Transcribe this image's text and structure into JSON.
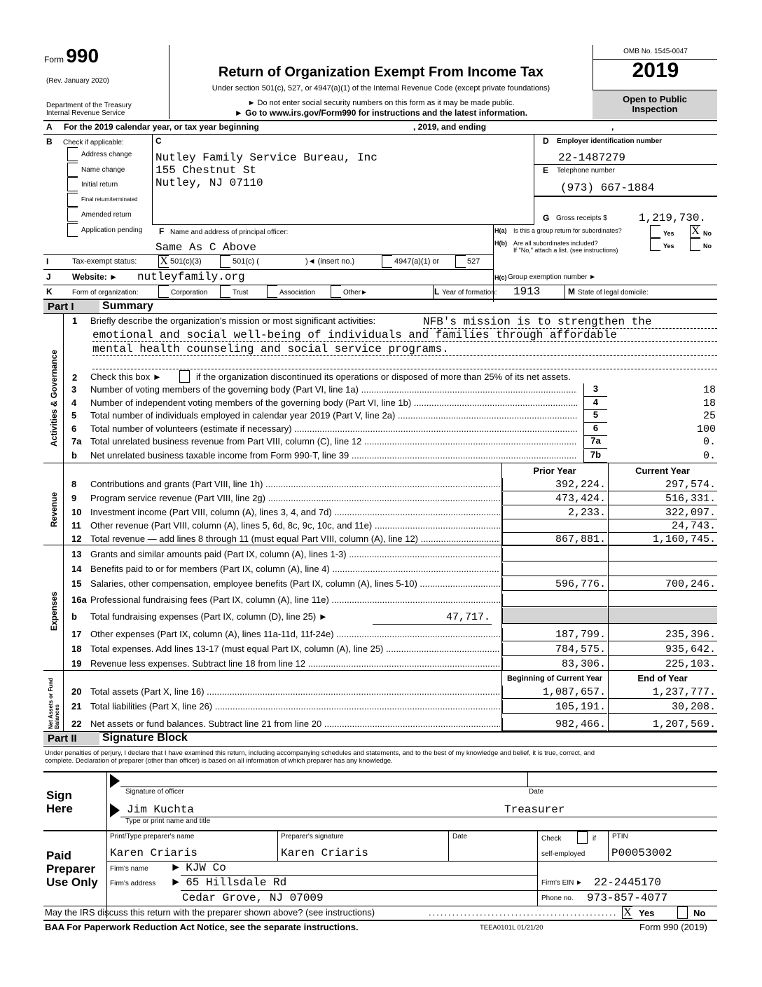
{
  "header": {
    "form_word": "Form",
    "form_number": "990",
    "rev": "(Rev. January 2020)",
    "dept1": "Department of the Treasury",
    "dept2": "Internal Revenue Service",
    "title": "Return of Organization Exempt From Income Tax",
    "subtitle": "Under section 501(c), 527, or 4947(a)(1) of the Internal Revenue Code (except private foundations)",
    "note1": "► Do not enter social security numbers on this form as it may be made public.",
    "note2": "► Go to www.irs.gov/Form990 for instructions and the latest information.",
    "omb": "OMB No. 1545-0047",
    "year": "2019",
    "open": "Open to Public",
    "inspection": "Inspection"
  },
  "lineA": {
    "letter": "A",
    "text": "For the 2019 calendar year, or tax year beginning",
    "mid": ", 2019, and ending",
    "end": ","
  },
  "B": {
    "letter": "B",
    "label": "Check if applicable:",
    "items": [
      "Address change",
      "Name change",
      "Initial return",
      "Final return/terminated",
      "Amended return",
      "Application pending"
    ]
  },
  "C": {
    "letter": "C",
    "name": "Nutley Family Service Bureau, Inc",
    "street": "155 Chestnut St",
    "city": "Nutley, NJ 07110"
  },
  "D": {
    "letter": "D",
    "label": "Employer identification number",
    "value": "22-1487279"
  },
  "E": {
    "letter": "E",
    "label": "Telephone number",
    "value": "(973) 667-1884"
  },
  "G": {
    "letter": "G",
    "label": "Gross receipts $",
    "value": "1,219,730."
  },
  "F": {
    "letter": "F",
    "label": "Name and address of principal officer:",
    "value": "Same As C Above"
  },
  "H": {
    "ha": "H(a)",
    "ha_text": "Is this a group return for subordinates?",
    "hb": "H(b)",
    "hb_text": "Are all subordinates included?",
    "hb_note": "If \"No,\" attach a list. (see instructions)",
    "hc": "H(c)",
    "hc_text": "Group exemption number ►",
    "yes": "Yes",
    "no": "No",
    "ha_no_mark": "X"
  },
  "I": {
    "letter": "I",
    "label": "Tax-exempt status:",
    "opt1": "501(c)(3)",
    "opt1_mark": "X",
    "opt2": "501(c) (",
    "opt2b": ")◄ (insert no.)",
    "opt3": "4947(a)(1) or",
    "opt4": "527"
  },
  "J": {
    "letter": "J",
    "label": "Website: ►",
    "value": "nutleyfamily.org"
  },
  "K": {
    "letter": "K",
    "label": "Form of organization:",
    "opts": [
      "Corporation",
      "Trust",
      "Association",
      "Other►"
    ]
  },
  "L": {
    "letter": "L",
    "label": "Year of formation:",
    "value": "1913"
  },
  "M": {
    "letter": "M",
    "label": "State of legal domicile:"
  },
  "part1": {
    "part": "Part I",
    "title": "Summary",
    "side_gov": "Activities & Governance",
    "side_rev": "Revenue",
    "side_exp": "Expenses",
    "side_net": "Net Assets or Fund Balances",
    "line1_num": "1",
    "line1_label": "Briefly describe the organization's mission or most significant activities:",
    "mission": [
      "NFB's mission is to strengthen the",
      "emotional and social well-being of individuals and families through affordable",
      "mental health counseling and social service programs."
    ],
    "line2_num": "2",
    "line2a": "Check this box ►",
    "line2b": "if the organization discontinued its operations or disposed of more than 25% of its net assets.",
    "gov_lines": [
      {
        "n": "3",
        "label": "Number of voting members of the governing body (Part VI, line 1a)",
        "box": "3",
        "value": "18"
      },
      {
        "n": "4",
        "label": "Number of independent voting members of the governing body (Part VI, line 1b)",
        "box": "4",
        "value": "18"
      },
      {
        "n": "5",
        "label": "Total number of individuals employed in calendar year 2019 (Part V, line 2a)",
        "box": "5",
        "value": "25"
      },
      {
        "n": "6",
        "label": "Total number of volunteers (estimate if necessary)",
        "box": "6",
        "value": "100"
      },
      {
        "n": "7a",
        "label": "Total unrelated business revenue from Part VIII, column (C), line 12",
        "box": "7a",
        "value": "0."
      },
      {
        "n": "b",
        "label": "Net unrelated business taxable income from Form 990-T, line 39",
        "box": "7b",
        "value": "0."
      }
    ],
    "col_prior": "Prior Year",
    "col_current": "Current Year",
    "rev_lines": [
      {
        "n": "8",
        "label": "Contributions and grants (Part VIII, line 1h)",
        "prior": "392,224.",
        "current": "297,574."
      },
      {
        "n": "9",
        "label": "Program service revenue (Part VIII, line 2g)",
        "prior": "473,424.",
        "current": "516,331."
      },
      {
        "n": "10",
        "label": "Investment income (Part VIII, column (A), lines 3, 4, and 7d)",
        "prior": "2,233.",
        "current": "322,097."
      },
      {
        "n": "11",
        "label": "Other revenue (Part VIII, column (A), lines 5, 6d, 8c, 9c, 10c, and 11e)",
        "prior": "",
        "current": "24,743."
      },
      {
        "n": "12",
        "label": "Total revenue — add lines 8 through 11 (must equal Part VIII, column (A), line 12)",
        "prior": "867,881.",
        "current": "1,160,745."
      }
    ],
    "exp_lines": [
      {
        "n": "13",
        "label": "Grants and similar amounts paid (Part IX, column (A), lines 1-3)",
        "prior": "",
        "current": ""
      },
      {
        "n": "14",
        "label": "Benefits paid to or for members (Part IX, column (A), line 4)",
        "prior": "",
        "current": ""
      },
      {
        "n": "15",
        "label": "Salaries, other compensation, employee benefits (Part IX, column (A), lines 5-10)",
        "prior": "596,776.",
        "current": "700,246."
      },
      {
        "n": "16a",
        "label": "Professional fundraising fees (Part IX, column (A), line 11e)",
        "prior": "",
        "current": ""
      }
    ],
    "line16b": {
      "n": "b",
      "label": "Total fundraising expenses (Part IX, column (D), line 25) ►",
      "value": "47,717."
    },
    "exp_lines2": [
      {
        "n": "17",
        "label": "Other expenses (Part IX, column (A), lines 11a-11d, 11f-24e)",
        "prior": "187,799.",
        "current": "235,396."
      },
      {
        "n": "18",
        "label": "Total expenses. Add lines 13-17 (must equal Part IX, column (A), line 25)",
        "prior": "784,575.",
        "current": "935,642."
      },
      {
        "n": "19",
        "label": "Revenue less expenses. Subtract line 18 from line 12",
        "prior": "83,306.",
        "current": "225,103."
      }
    ],
    "col_begin": "Beginning of Current Year",
    "col_end": "End of Year",
    "net_lines": [
      {
        "n": "20",
        "label": "Total assets (Part X, line 16)",
        "prior": "1,087,657.",
        "current": "1,237,777."
      },
      {
        "n": "21",
        "label": "Total liabilities (Part X, line 26)",
        "prior": "105,191.",
        "current": "30,208."
      },
      {
        "n": "22",
        "label": "Net assets or fund balances. Subtract line 21 from line 20",
        "prior": "982,466.",
        "current": "1,207,569."
      }
    ]
  },
  "part2": {
    "part": "Part II",
    "title": "Signature Block",
    "perjury1": "Under penalties of perjury, I declare that I have examined this return, including accompanying schedules and statements, and to the best of my knowledge and belief, it is true, correct, and",
    "perjury2": "complete. Declaration of preparer (other than officer) is based on all information of which preparer has any knowledge.",
    "sign": "Sign",
    "here": "Here",
    "sig_label": "Signature of officer",
    "date_label": "Date",
    "officer_name": "Jim Kuchta",
    "officer_title": "Treasurer",
    "name_label": "Type or print name and title"
  },
  "preparer": {
    "paid": "Paid",
    "preparer": "Preparer",
    "use_only": "Use Only",
    "name_label": "Print/Type preparer's name",
    "sig_label": "Preparer's signature",
    "date_label": "Date",
    "check_label": "Check",
    "if_label": "if",
    "self_emp": "self-employed",
    "ptin_label": "PTIN",
    "name": "Karen Criaris",
    "signature": "Karen Criaris",
    "ptin": "P00053002",
    "firm_name_label": "Firm's name",
    "firm_name": "KJW Co",
    "firm_addr_label": "Firm's address",
    "firm_addr1": "65 Hillsdale Rd",
    "firm_addr2": "Cedar Grove, NJ 07009",
    "firm_ein_label": "Firm's EIN ►",
    "firm_ein": "22-2445170",
    "phone_label": "Phone no.",
    "phone": "973-857-4077"
  },
  "discuss": {
    "text": "May the IRS discuss this return with the preparer shown above? (see instructions)",
    "yes_mark": "X",
    "yes": "Yes",
    "no": "No"
  },
  "footer": {
    "baa": "BAA For Paperwork Reduction Act Notice, see the separate instructions.",
    "code": "TEEA0101L 01/21/20",
    "form": "Form 990 (2019)"
  }
}
